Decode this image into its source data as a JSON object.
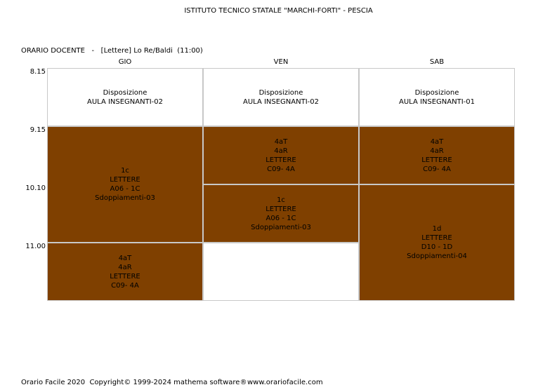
{
  "header": {
    "title": "ISTITUTO TECNICO STATALE \"MARCHI-FORTI\" - PESCIA",
    "subtitle": "ORARIO DOCENTE   -   [Lettere] Lo Re/Baldi  (11:00)"
  },
  "table": {
    "times": [
      "8.15",
      "9.15",
      "10.10",
      "11.00"
    ],
    "columns": [
      {
        "day": "GIO",
        "blocks": [
          {
            "kind": "free",
            "lines": [
              "Disposizione",
              "AULA INSEGNANTI-02"
            ]
          },
          {
            "kind": "lesson",
            "lines": [
              "1c",
              "LETTERE",
              "A06 - 1C",
              "Sdoppiamenti-03"
            ]
          },
          {
            "kind": "lesson",
            "lines": [
              "4aT",
              "4aR",
              "LETTERE",
              "C09- 4A"
            ]
          }
        ]
      },
      {
        "day": "VEN",
        "blocks": [
          {
            "kind": "free",
            "lines": [
              "Disposizione",
              "AULA INSEGNANTI-02"
            ]
          },
          {
            "kind": "lesson",
            "lines": [
              "4aT",
              "4aR",
              "LETTERE",
              "C09- 4A"
            ]
          },
          {
            "kind": "lesson",
            "lines": [
              "1c",
              "LETTERE",
              "A06 - 1C",
              "Sdoppiamenti-03"
            ]
          },
          {
            "kind": "free",
            "lines": []
          }
        ]
      },
      {
        "day": "SAB",
        "blocks": [
          {
            "kind": "free",
            "lines": [
              "Disposizione",
              "AULA INSEGNANTI-01"
            ]
          },
          {
            "kind": "lesson",
            "lines": [
              "4aT",
              "4aR",
              "LETTERE",
              "C09- 4A"
            ]
          },
          {
            "kind": "lesson",
            "lines": [
              "1d",
              "LETTERE",
              "D10 - 1D",
              "Sdoppiamenti-04"
            ]
          }
        ]
      }
    ]
  },
  "footer": {
    "copyright": "Orario Facile 2020  Copyright© 1999-2024 mathema software®",
    "site": "www.orariofacile.com"
  }
}
